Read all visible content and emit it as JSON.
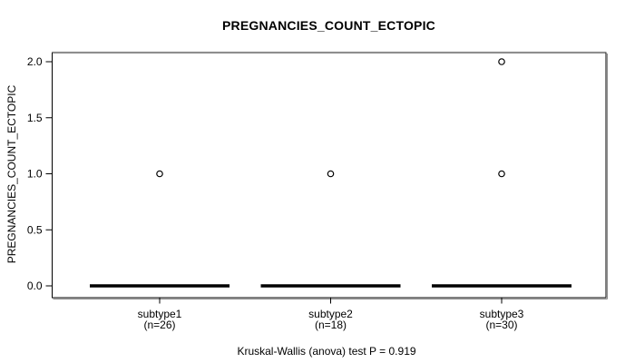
{
  "chart_data": {
    "type": "boxplot",
    "title": "PREGNANCIES_COUNT_ECTOPIC",
    "ylabel": "PREGNANCIES_COUNT_ECTOPIC",
    "xlabel": "",
    "categories": [
      "subtype1",
      "subtype2",
      "subtype3"
    ],
    "groups": [
      {
        "label": "subtype1",
        "n": 26,
        "count_label": "(n=26)",
        "median": 0,
        "q1": 0,
        "q3": 0,
        "whisker_low": 0,
        "whisker_high": 0,
        "outliers": [
          1
        ]
      },
      {
        "label": "subtype2",
        "n": 18,
        "count_label": "(n=18)",
        "median": 0,
        "q1": 0,
        "q3": 0,
        "whisker_low": 0,
        "whisker_high": 0,
        "outliers": [
          1
        ]
      },
      {
        "label": "subtype3",
        "n": 30,
        "count_label": "(n=30)",
        "median": 0,
        "q1": 0,
        "q3": 0,
        "whisker_low": 0,
        "whisker_high": 0,
        "outliers": [
          1,
          2
        ]
      }
    ],
    "yticks": [
      0.0,
      0.5,
      1.0,
      1.5,
      2.0
    ],
    "ytick_labels": [
      "0.0",
      "0.5",
      "1.0",
      "1.5",
      "2.0"
    ],
    "ylim": [
      0,
      2
    ],
    "grid": false,
    "legend": false,
    "caption": "Kruskal-Wallis (anova) test P = 0.919",
    "statistical_test": {
      "name": "Kruskal-Wallis (anova) test",
      "p_value": 0.919
    }
  },
  "colors": {
    "foreground": "#000000",
    "background": "#ffffff",
    "border_shadow": "#8c8c8c"
  }
}
